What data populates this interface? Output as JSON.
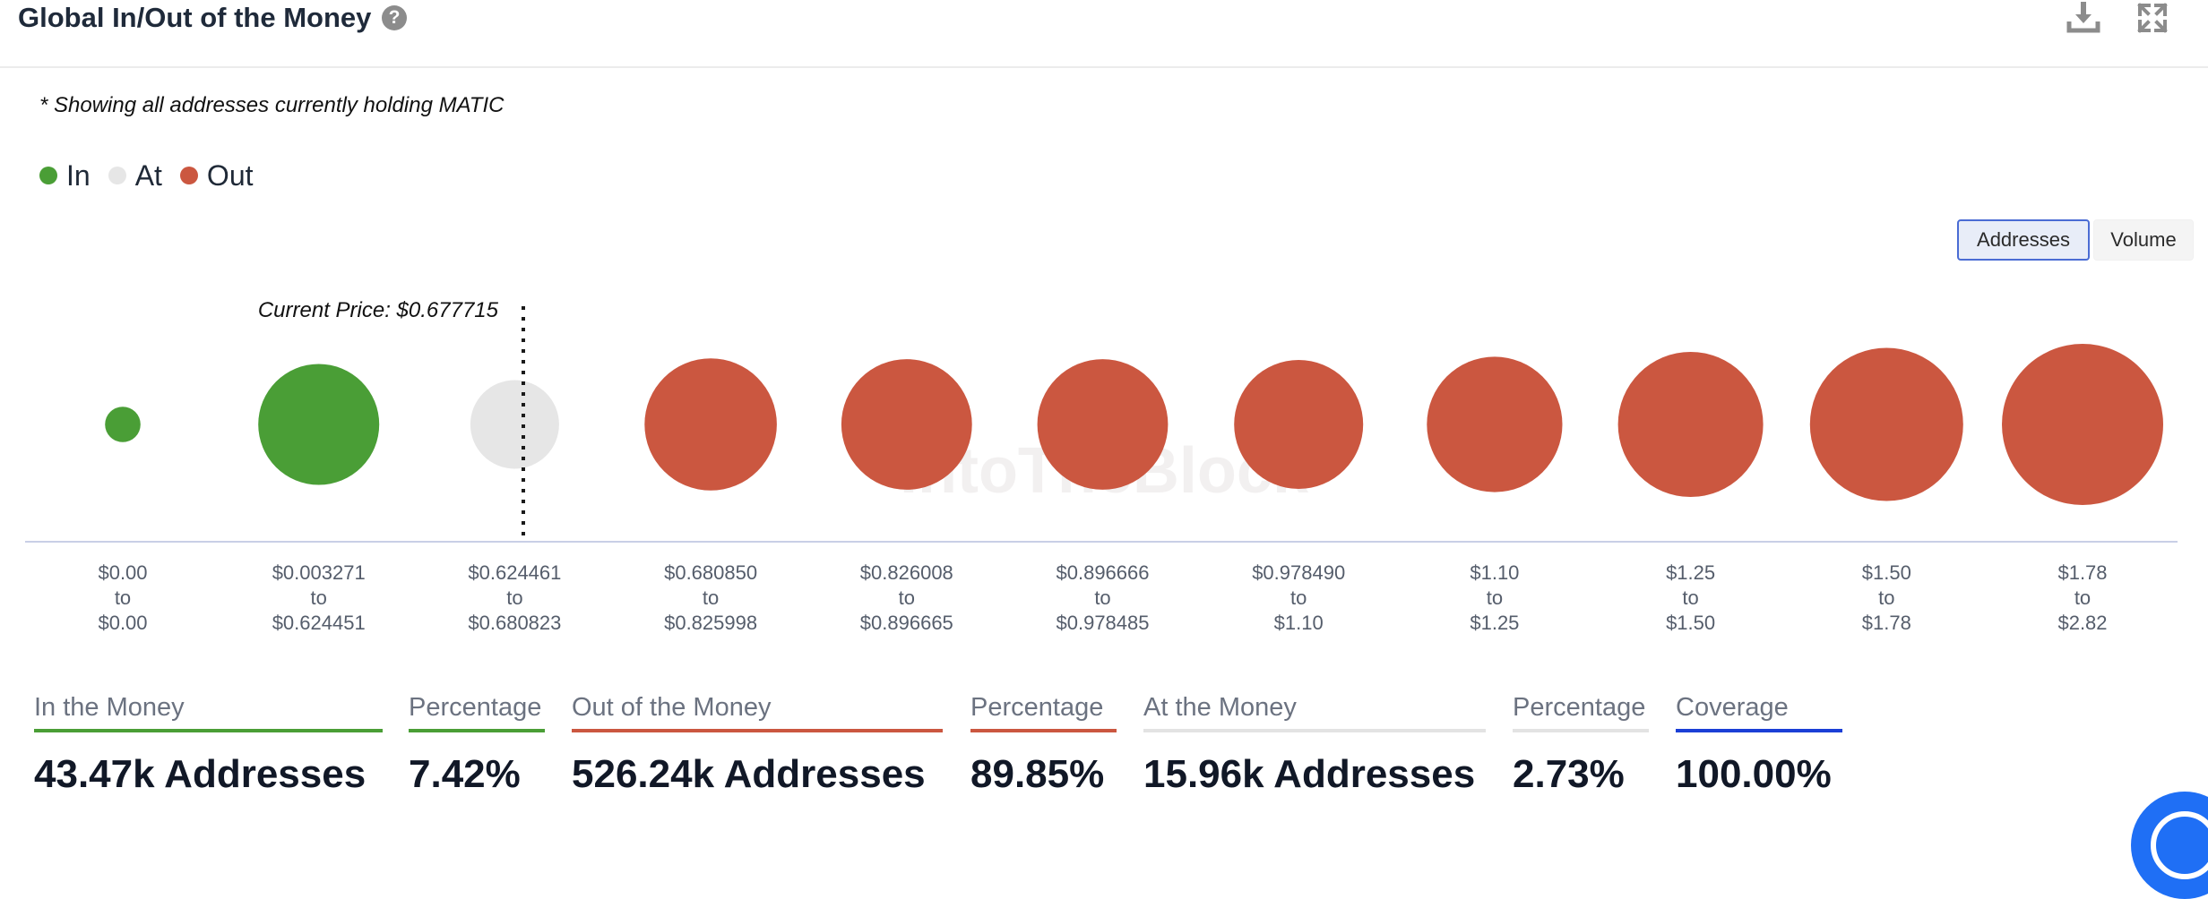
{
  "header": {
    "title": "Global In/Out of the Money",
    "help_icon": "question-icon",
    "download_icon": "download-icon",
    "expand_icon": "expand-icon"
  },
  "subtitle": "* Showing all addresses currently holding MATIC",
  "legend": [
    {
      "label": "In",
      "color": "#4a9e36"
    },
    {
      "label": "At",
      "color": "#e6e6e6"
    },
    {
      "label": "Out",
      "color": "#cb5740"
    }
  ],
  "toggle": {
    "addresses_label": "Addresses",
    "volume_label": "Volume",
    "selected": "Addresses"
  },
  "chart_data": {
    "type": "bubble",
    "title": "Global In/Out of the Money",
    "measure": "Addresses",
    "current_price_label": "Current Price: $0.677715",
    "current_price": 0.677715,
    "categories": [
      {
        "from": "$0.00",
        "to": "$0.00",
        "status": "In",
        "relative_size": 0.22
      },
      {
        "from": "$0.003271",
        "to": "$0.624451",
        "status": "In",
        "relative_size": 0.75
      },
      {
        "from": "$0.624461",
        "to": "$0.680823",
        "status": "At",
        "relative_size": 0.55
      },
      {
        "from": "$0.680850",
        "to": "$0.825998",
        "status": "Out",
        "relative_size": 0.82
      },
      {
        "from": "$0.826008",
        "to": "$0.896665",
        "status": "Out",
        "relative_size": 0.81
      },
      {
        "from": "$0.896666",
        "to": "$0.978485",
        "status": "Out",
        "relative_size": 0.81
      },
      {
        "from": "$0.978490",
        "to": "$1.10",
        "status": "Out",
        "relative_size": 0.8
      },
      {
        "from": "$1.10",
        "to": "$1.25",
        "status": "Out",
        "relative_size": 0.84
      },
      {
        "from": "$1.25",
        "to": "$1.50",
        "status": "Out",
        "relative_size": 0.9
      },
      {
        "from": "$1.50",
        "to": "$1.78",
        "status": "Out",
        "relative_size": 0.95
      },
      {
        "from": "$1.78",
        "to": "$2.82",
        "status": "Out",
        "relative_size": 1.0
      }
    ],
    "range_connector": "to",
    "colors": {
      "In": "#4a9e36",
      "At": "#e6e6e6",
      "Out": "#cb5740"
    },
    "watermark": "IntoTheBlock"
  },
  "stats": [
    {
      "label": "In the Money",
      "value": "43.47k Addresses",
      "color": "#4a9e36"
    },
    {
      "label": "Percentage",
      "value": "7.42%",
      "color": "#4a9e36"
    },
    {
      "label": "Out of the Money",
      "value": "526.24k Addresses",
      "color": "#cb5740"
    },
    {
      "label": "Percentage",
      "value": "89.85%",
      "color": "#cb5740"
    },
    {
      "label": "At the Money",
      "value": "15.96k Addresses",
      "color": "#e3e3e3"
    },
    {
      "label": "Percentage",
      "value": "2.73%",
      "color": "#e3e3e3"
    },
    {
      "label": "Coverage",
      "value": "100.00%",
      "color": "#1b3fd6"
    }
  ]
}
